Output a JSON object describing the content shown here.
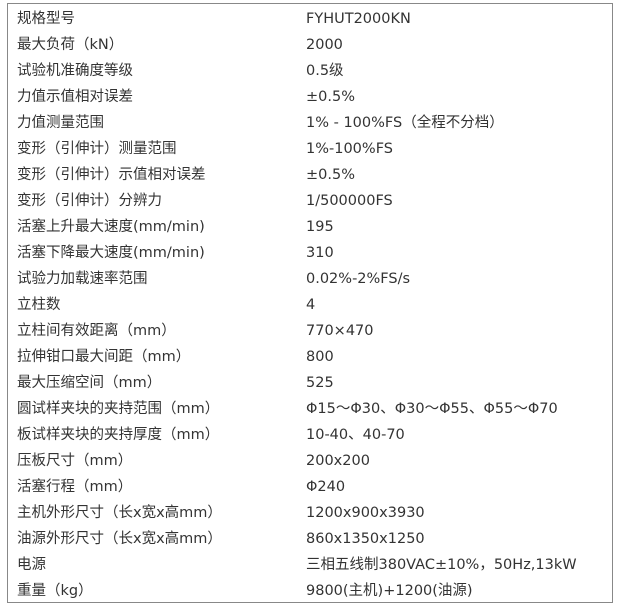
{
  "rows": [
    {
      "label": "规格型号",
      "value": "FYHUT2000KN"
    },
    {
      "label": "最大负荷（kN）",
      "value": "2000"
    },
    {
      "label": "试验机准确度等级",
      "value": "0.5级"
    },
    {
      "label": "力值示值相对误差",
      "value": "±0.5%"
    },
    {
      "label": "力值测量范围",
      "value": "1% - 100%FS（全程不分档）"
    },
    {
      "label": "变形（引伸计）测量范围",
      "value": "1%-100%FS"
    },
    {
      "label": "变形（引伸计）示值相对误差",
      "value": "±0.5%"
    },
    {
      "label": "变形（引伸计）分辨力",
      "value": "1/500000FS"
    },
    {
      "label": "活塞上升最大速度(mm/min)",
      "value": "195"
    },
    {
      "label": "活塞下降最大速度(mm/min)",
      "value": "310"
    },
    {
      "label": "试验力加载速率范围",
      "value": "0.02%-2%FS/s"
    },
    {
      "label": "立柱数",
      "value": "4"
    },
    {
      "label": "立柱间有效距离（mm）",
      "value": "770×470"
    },
    {
      "label": "拉伸钳口最大间距（mm）",
      "value": "800"
    },
    {
      "label": "最大压缩空间（mm）",
      "value": "525"
    },
    {
      "label": "圆试样夹块的夹持范围（mm）",
      "value": "Φ15～Φ30、Φ30～Φ55、Φ55～Φ70"
    },
    {
      "label": "板试样夹块的夹持厚度（mm）",
      "value": "10-40、40-70"
    },
    {
      "label": "压板尺寸（mm）",
      "value": "200x200"
    },
    {
      "label": "活塞行程（mm）",
      "value": "Φ240"
    },
    {
      "label": "主机外形尺寸（长x宽x高mm）",
      "value": "1200x900x3930"
    },
    {
      "label": "油源外形尺寸（长x宽x高mm）",
      "value": "860x1350x1250"
    },
    {
      "label": "电源",
      "value": "三相五线制380VAC±10%，50Hz,13kW"
    },
    {
      "label": "重量（kg）",
      "value": "9800(主机)+1200(油源)"
    }
  ]
}
